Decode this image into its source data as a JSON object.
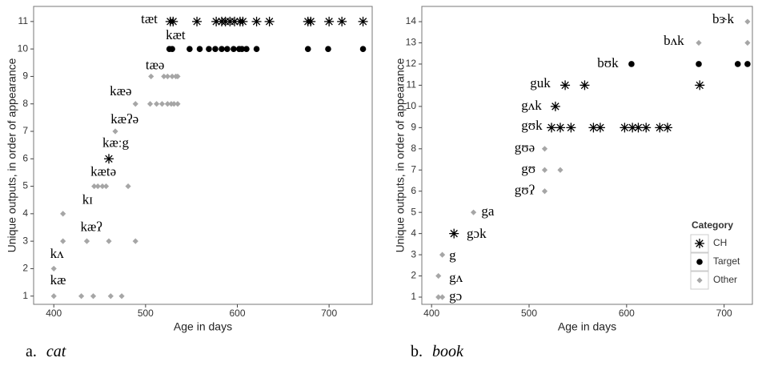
{
  "chart_data": [
    {
      "type": "scatter",
      "caption_label": "a.",
      "caption": "cat",
      "xlabel": "Age in days",
      "ylabel": "Unique outputs, in order of appearance",
      "xlim": [
        378,
        747
      ],
      "ylim": [
        0.7,
        11.55
      ],
      "xticks": [
        400,
        500,
        600,
        700
      ],
      "yticks": [
        1,
        2,
        3,
        4,
        5,
        6,
        7,
        8,
        9,
        10,
        11
      ],
      "legend": false,
      "series": [
        {
          "name": "CH",
          "marker": "asterisk",
          "color": "#000000",
          "x": [
            460,
            527,
            530,
            556,
            577,
            583,
            587,
            592,
            597,
            603,
            606,
            621,
            635,
            677,
            680,
            700,
            714,
            737
          ],
          "values": [
            6,
            11,
            11,
            11,
            11,
            11,
            11,
            11,
            11,
            11,
            11,
            11,
            11,
            11,
            11,
            11,
            11,
            11
          ]
        },
        {
          "name": "Target",
          "marker": "circle",
          "color": "#000000",
          "x": [
            526,
            529,
            548,
            559,
            569,
            576,
            583,
            589,
            596,
            602,
            605,
            610,
            621,
            677,
            699,
            737
          ],
          "values": [
            10,
            10,
            10,
            10,
            10,
            10,
            10,
            10,
            10,
            10,
            10,
            10,
            10,
            10,
            10,
            10
          ]
        },
        {
          "name": "Other",
          "marker": "diamond",
          "color": "#a6a6a6",
          "x": [
            400,
            430,
            443,
            462,
            474,
            400,
            410,
            436,
            460,
            489,
            410,
            444,
            448,
            453,
            457,
            481,
            467,
            489,
            505,
            512,
            518,
            524,
            528,
            531,
            535,
            506,
            520,
            524,
            529,
            533,
            535
          ],
          "values": [
            1,
            1,
            1,
            1,
            1,
            2,
            3,
            3,
            3,
            3,
            4,
            5,
            5,
            5,
            5,
            5,
            7,
            8,
            8,
            8,
            8,
            8,
            8,
            8,
            8,
            9,
            9,
            9,
            9,
            9,
            9
          ]
        }
      ],
      "annotations": [
        {
          "text": "kæ",
          "x": 396,
          "y": 1.55
        },
        {
          "text": "kʌ",
          "x": 396,
          "y": 2.5
        },
        {
          "text": "kæʔ",
          "x": 429,
          "y": 3.48
        },
        {
          "text": "kɪ",
          "x": 431,
          "y": 4.47
        },
        {
          "text": "kætə",
          "x": 440,
          "y": 5.49
        },
        {
          "text": "kæːg",
          "x": 453,
          "y": 6.54
        },
        {
          "text": "kæʔə",
          "x": 462,
          "y": 7.41
        },
        {
          "text": "kæə",
          "x": 461,
          "y": 8.43
        },
        {
          "text": "tæə",
          "x": 500,
          "y": 9.37
        },
        {
          "text": "kæt",
          "x": 522,
          "y": 10.47
        },
        {
          "text": "tæt",
          "x": 495,
          "y": 11.05
        }
      ]
    },
    {
      "type": "scatter",
      "caption_label": "b.",
      "caption": "book",
      "xlabel": "Age in days",
      "ylabel": "Unique outputs, in order of appearance",
      "xlim": [
        390,
        729
      ],
      "ylim": [
        0.66,
        14.72
      ],
      "xticks": [
        400,
        500,
        600,
        700
      ],
      "yticks": [
        1,
        2,
        3,
        4,
        5,
        6,
        7,
        8,
        9,
        10,
        11,
        12,
        13,
        14
      ],
      "legend": "lower right",
      "legend_title": "Category",
      "series": [
        {
          "name": "CH",
          "marker": "asterisk",
          "color": "#000000",
          "x": [
            423,
            523,
            532,
            543,
            566,
            573,
            598,
            606,
            612,
            620,
            634,
            642,
            527,
            537,
            557,
            675
          ],
          "values": [
            4,
            9,
            9,
            9,
            9,
            9,
            9,
            9,
            9,
            9,
            9,
            9,
            10,
            11,
            11,
            11
          ]
        },
        {
          "name": "Target",
          "marker": "circle",
          "color": "#000000",
          "x": [
            605,
            674,
            714,
            724
          ],
          "values": [
            12,
            12,
            12,
            12
          ]
        },
        {
          "name": "Other",
          "marker": "diamond",
          "color": "#a6a6a6",
          "x": [
            407,
            411,
            407,
            411,
            443,
            516,
            516,
            532,
            516,
            674,
            724,
            724
          ],
          "values": [
            1,
            1,
            2,
            3,
            5,
            6,
            7,
            7,
            8,
            13,
            13,
            14
          ]
        }
      ],
      "annotations": [
        {
          "text": "gɔ",
          "x": 418,
          "y": 1.0
        },
        {
          "text": "gʌ",
          "x": 418,
          "y": 1.87
        },
        {
          "text": "g",
          "x": 418,
          "y": 2.93
        },
        {
          "text": "gɔk",
          "x": 436,
          "y": 3.95
        },
        {
          "text": "ga",
          "x": 451,
          "y": 5.0
        },
        {
          "text": "gʊʔ",
          "x": 485,
          "y": 6.0
        },
        {
          "text": "gʊ",
          "x": 492,
          "y": 7.0
        },
        {
          "text": "gʊə",
          "x": 485,
          "y": 8.0
        },
        {
          "text": "gʊk",
          "x": 492,
          "y": 9.05
        },
        {
          "text": "gʌk",
          "x": 492,
          "y": 10.0
        },
        {
          "text": "guk",
          "x": 501,
          "y": 11.05
        },
        {
          "text": "bʊk",
          "x": 570,
          "y": 12.0
        },
        {
          "text": "bʌk",
          "x": 638,
          "y": 13.05
        },
        {
          "text": "bɝk",
          "x": 688,
          "y": 14.08
        }
      ]
    }
  ]
}
